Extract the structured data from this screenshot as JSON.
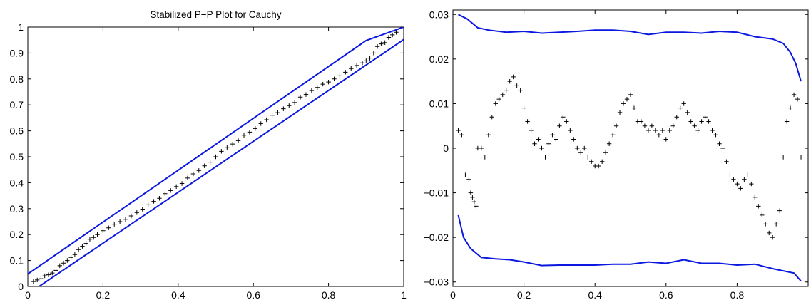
{
  "chart_data": [
    {
      "type": "scatter",
      "title": "Stabilized P−P Plot for Cauchy",
      "xlabel": "",
      "ylabel": "",
      "xlim": [
        0,
        1
      ],
      "ylim": [
        0,
        1
      ],
      "xticks": [
        0,
        0.2,
        0.4,
        0.6,
        0.8,
        1
      ],
      "xtick_labels": [
        "0",
        "0.2",
        "0.4",
        "0.6",
        "0.8",
        "1"
      ],
      "yticks": [
        0,
        0.1,
        0.2,
        0.3,
        0.4,
        0.5,
        0.6,
        0.7,
        0.8,
        0.9,
        1
      ],
      "ytick_labels": [
        "0",
        "0.1",
        "0.2",
        "0.3",
        "0.4",
        "0.5",
        "0.6",
        "0.7",
        "0.8",
        "0.9",
        "1"
      ],
      "grid": false,
      "band_color": "#0b18e0",
      "marker_color": "#000000",
      "series": [
        {
          "role": "points",
          "marker": "+",
          "x": [
            0.015,
            0.025,
            0.035,
            0.045,
            0.055,
            0.065,
            0.075,
            0.085,
            0.095,
            0.105,
            0.115,
            0.125,
            0.135,
            0.145,
            0.155,
            0.165,
            0.175,
            0.185,
            0.2,
            0.215,
            0.23,
            0.245,
            0.26,
            0.275,
            0.29,
            0.305,
            0.32,
            0.335,
            0.35,
            0.365,
            0.38,
            0.395,
            0.41,
            0.425,
            0.44,
            0.455,
            0.47,
            0.485,
            0.5,
            0.515,
            0.53,
            0.545,
            0.56,
            0.575,
            0.59,
            0.605,
            0.62,
            0.635,
            0.65,
            0.665,
            0.68,
            0.695,
            0.71,
            0.725,
            0.74,
            0.755,
            0.77,
            0.785,
            0.8,
            0.815,
            0.83,
            0.845,
            0.86,
            0.875,
            0.89,
            0.9,
            0.91,
            0.92,
            0.93,
            0.94,
            0.95,
            0.96,
            0.97,
            0.98
          ],
          "y": [
            0.019,
            0.025,
            0.03,
            0.041,
            0.045,
            0.052,
            0.062,
            0.08,
            0.09,
            0.1,
            0.112,
            0.123,
            0.142,
            0.155,
            0.166,
            0.182,
            0.189,
            0.2,
            0.215,
            0.226,
            0.24,
            0.25,
            0.259,
            0.272,
            0.285,
            0.298,
            0.315,
            0.328,
            0.34,
            0.358,
            0.37,
            0.385,
            0.397,
            0.418,
            0.434,
            0.447,
            0.465,
            0.479,
            0.5,
            0.521,
            0.535,
            0.549,
            0.562,
            0.583,
            0.595,
            0.609,
            0.628,
            0.643,
            0.66,
            0.67,
            0.685,
            0.697,
            0.709,
            0.73,
            0.74,
            0.755,
            0.767,
            0.78,
            0.788,
            0.8,
            0.812,
            0.826,
            0.84,
            0.852,
            0.862,
            0.87,
            0.88,
            0.9,
            0.925,
            0.935,
            0.94,
            0.96,
            0.97,
            0.98
          ]
        },
        {
          "role": "upper band",
          "type": "line",
          "x": [
            0.0,
            0.9,
            1.0
          ],
          "y": [
            0.048,
            0.948,
            1.0
          ]
        },
        {
          "role": "lower band",
          "type": "line",
          "x": [
            0.03,
            1.0
          ],
          "y": [
            0.0,
            0.952
          ]
        }
      ]
    },
    {
      "type": "scatter",
      "title": "",
      "xlabel": "",
      "ylabel": "",
      "xlim": [
        0,
        1
      ],
      "ylim": [
        -0.031,
        0.031
      ],
      "xticks": [
        0,
        0.2,
        0.4,
        0.6,
        0.8
      ],
      "xtick_labels": [
        "0",
        "0.2",
        "0.4",
        "0.6",
        "0.8"
      ],
      "yticks": [
        -0.03,
        -0.02,
        -0.01,
        0,
        0.01,
        0.02,
        0.03
      ],
      "ytick_labels": [
        "−0.03",
        "−0.02",
        "−0.01",
        "0",
        "0.01",
        "0.02",
        "0.03"
      ],
      "grid": false,
      "band_color": "#0b18e0",
      "marker_color": "#000000",
      "series": [
        {
          "role": "points",
          "marker": "+",
          "x": [
            0.015,
            0.025,
            0.035,
            0.045,
            0.05,
            0.055,
            0.06,
            0.065,
            0.07,
            0.08,
            0.09,
            0.1,
            0.11,
            0.12,
            0.13,
            0.14,
            0.15,
            0.16,
            0.17,
            0.18,
            0.19,
            0.2,
            0.21,
            0.22,
            0.23,
            0.24,
            0.25,
            0.26,
            0.27,
            0.28,
            0.29,
            0.3,
            0.31,
            0.32,
            0.33,
            0.34,
            0.35,
            0.36,
            0.37,
            0.38,
            0.39,
            0.4,
            0.41,
            0.42,
            0.43,
            0.44,
            0.45,
            0.46,
            0.47,
            0.48,
            0.49,
            0.5,
            0.51,
            0.52,
            0.53,
            0.54,
            0.55,
            0.56,
            0.57,
            0.58,
            0.59,
            0.6,
            0.61,
            0.62,
            0.63,
            0.64,
            0.65,
            0.66,
            0.67,
            0.68,
            0.69,
            0.7,
            0.71,
            0.72,
            0.73,
            0.74,
            0.75,
            0.76,
            0.77,
            0.78,
            0.79,
            0.8,
            0.81,
            0.82,
            0.83,
            0.84,
            0.85,
            0.86,
            0.87,
            0.88,
            0.89,
            0.9,
            0.91,
            0.92,
            0.93,
            0.94,
            0.95,
            0.96,
            0.97,
            0.98
          ],
          "y": [
            0.004,
            0.003,
            -0.006,
            -0.007,
            -0.01,
            -0.011,
            -0.012,
            -0.013,
            0.0,
            0.0,
            -0.002,
            0.003,
            0.007,
            0.01,
            0.011,
            0.012,
            0.013,
            0.015,
            0.016,
            0.014,
            0.013,
            0.009,
            0.006,
            0.004,
            0.001,
            0.002,
            0.0,
            -0.002,
            0.001,
            0.003,
            0.002,
            0.005,
            0.007,
            0.006,
            0.004,
            0.002,
            0.0,
            -0.001,
            0.0,
            -0.002,
            -0.003,
            -0.004,
            -0.004,
            -0.003,
            -0.001,
            0.001,
            0.003,
            0.005,
            0.008,
            0.01,
            0.011,
            0.012,
            0.009,
            0.006,
            0.006,
            0.005,
            0.004,
            0.005,
            0.004,
            0.003,
            0.004,
            0.002,
            0.004,
            0.005,
            0.007,
            0.009,
            0.01,
            0.008,
            0.006,
            0.005,
            0.004,
            0.006,
            0.007,
            0.006,
            0.004,
            0.003,
            0.001,
            0.0,
            -0.003,
            -0.006,
            -0.007,
            -0.008,
            -0.009,
            -0.007,
            -0.006,
            -0.008,
            -0.011,
            -0.013,
            -0.015,
            -0.017,
            -0.019,
            -0.02,
            -0.017,
            -0.014,
            -0.002,
            0.006,
            0.009,
            0.012,
            0.011,
            -0.002
          ]
        },
        {
          "role": "upper band",
          "type": "line",
          "x": [
            0.015,
            0.04,
            0.07,
            0.1,
            0.15,
            0.2,
            0.25,
            0.3,
            0.35,
            0.4,
            0.45,
            0.5,
            0.55,
            0.6,
            0.65,
            0.7,
            0.75,
            0.8,
            0.85,
            0.9,
            0.93,
            0.95,
            0.965,
            0.98
          ],
          "y": [
            0.03,
            0.029,
            0.027,
            0.0265,
            0.026,
            0.0262,
            0.0258,
            0.026,
            0.0262,
            0.0265,
            0.0265,
            0.0262,
            0.0255,
            0.026,
            0.026,
            0.0258,
            0.0262,
            0.026,
            0.025,
            0.0245,
            0.0235,
            0.0215,
            0.019,
            0.015
          ]
        },
        {
          "role": "lower band",
          "type": "line",
          "x": [
            0.015,
            0.03,
            0.05,
            0.08,
            0.12,
            0.16,
            0.2,
            0.25,
            0.3,
            0.35,
            0.4,
            0.45,
            0.5,
            0.55,
            0.6,
            0.65,
            0.7,
            0.75,
            0.8,
            0.85,
            0.9,
            0.93,
            0.96,
            0.98
          ],
          "y": [
            -0.015,
            -0.02,
            -0.0225,
            -0.0245,
            -0.0248,
            -0.025,
            -0.0255,
            -0.0263,
            -0.0262,
            -0.0262,
            -0.0262,
            -0.026,
            -0.026,
            -0.0255,
            -0.0258,
            -0.025,
            -0.0258,
            -0.0258,
            -0.0262,
            -0.026,
            -0.027,
            -0.0275,
            -0.028,
            -0.0298
          ]
        }
      ]
    }
  ]
}
